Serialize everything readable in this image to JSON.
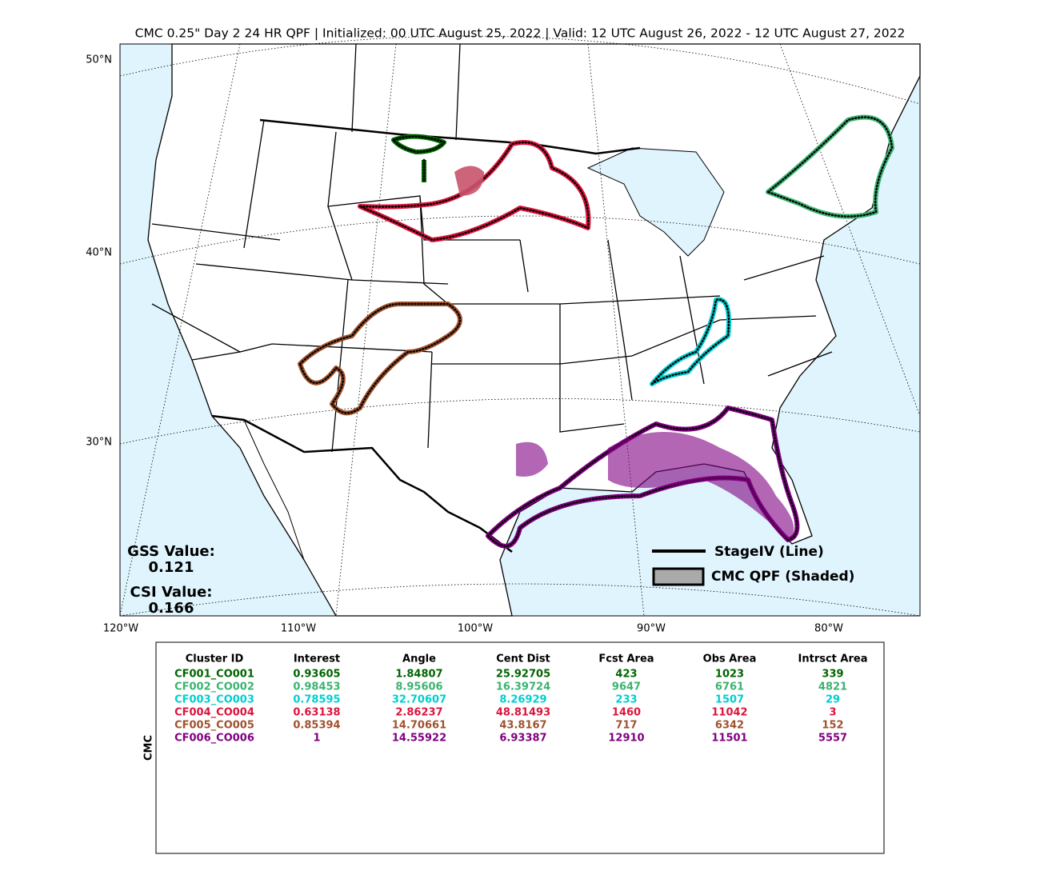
{
  "title": "CMC 0.25\" Day 2 24 HR QPF | Initialized: 00 UTC August 25, 2022 | Valid: 12 UTC August 26, 2022 - 12 UTC August 27, 2022",
  "map": {
    "lat_labels": [
      "50°N",
      "40°N",
      "30°N"
    ],
    "lon_labels": [
      "120°W",
      "110°W",
      "100°W",
      "90°W",
      "80°W"
    ],
    "scores": {
      "gss_label": "GSS Value:",
      "gss": 0.121,
      "csi_label": "CSI Value:",
      "csi": 0.166
    },
    "legend": [
      "StageIV (Line)",
      "CMC QPF (Shaded)"
    ]
  },
  "table": {
    "side_label": "CMC",
    "headers": [
      "Cluster ID",
      "Interest",
      "Angle",
      "Cent Dist",
      "Fcst Area",
      "Obs Area",
      "Intrsct Area"
    ],
    "rows": [
      {
        "color": "#006400",
        "cells": [
          "CF001_CO001",
          0.93605,
          1.84807,
          25.92705,
          423,
          1023,
          339
        ]
      },
      {
        "color": "#3cb371",
        "cells": [
          "CF002_CO002",
          0.98453,
          8.95606,
          16.39724,
          9647,
          6761,
          4821
        ]
      },
      {
        "color": "#00ced1",
        "cells": [
          "CF003_CO003",
          0.78595,
          32.70607,
          8.26929,
          233,
          1507,
          29
        ]
      },
      {
        "color": "#dc143c",
        "cells": [
          "CF004_CO004",
          0.63138,
          2.86237,
          48.81493,
          1460,
          11042,
          3
        ]
      },
      {
        "color": "#a0522d",
        "cells": [
          "CF005_CO005",
          0.85394,
          14.70661,
          43.8167,
          717,
          6342,
          152
        ]
      },
      {
        "color": "#800080",
        "cells": [
          "CF006_CO006",
          1,
          14.55922,
          6.93387,
          12910,
          11501,
          5557
        ]
      }
    ]
  }
}
